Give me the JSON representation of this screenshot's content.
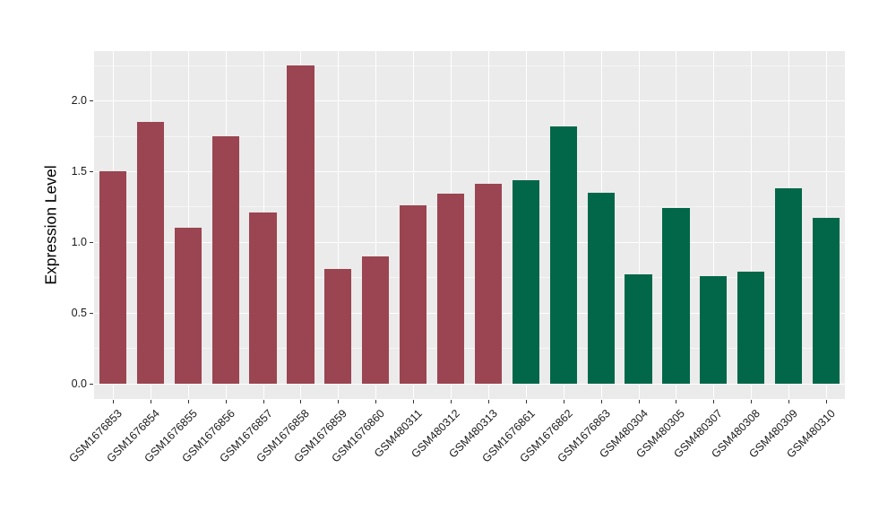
{
  "figure": {
    "background": "#FFFFFF"
  },
  "chart_data": {
    "type": "bar",
    "title": "",
    "xlabel": "",
    "ylabel": "Expression Level",
    "categories": [
      "GSM1676853",
      "GSM1676854",
      "GSM1676855",
      "GSM1676856",
      "GSM1676857",
      "GSM1676858",
      "GSM1676859",
      "GSM1676860",
      "GSM480311",
      "GSM480312",
      "GSM480313",
      "GSM1676861",
      "GSM1676862",
      "GSM1676863",
      "GSM480304",
      "GSM480305",
      "GSM480307",
      "GSM480308",
      "GSM480309",
      "GSM480310"
    ],
    "values": [
      1.5,
      1.85,
      1.1,
      1.75,
      1.21,
      2.25,
      0.81,
      0.9,
      1.26,
      1.34,
      1.41,
      1.44,
      1.82,
      1.35,
      0.77,
      1.24,
      0.76,
      0.79,
      1.38,
      1.17
    ],
    "bar_colors": [
      "#9A4551",
      "#9A4551",
      "#9A4551",
      "#9A4551",
      "#9A4551",
      "#9A4551",
      "#9A4551",
      "#9A4551",
      "#9A4551",
      "#9A4551",
      "#9A4551",
      "#026749",
      "#026749",
      "#026749",
      "#026749",
      "#026749",
      "#026749",
      "#026749",
      "#026749",
      "#026749"
    ],
    "yticks": [
      {
        "value": 0.0,
        "label": "0.0"
      },
      {
        "value": 0.5,
        "label": "0.5"
      },
      {
        "value": 1.0,
        "label": "1.0"
      },
      {
        "value": 1.5,
        "label": "1.5"
      },
      {
        "value": 2.0,
        "label": "2.0"
      }
    ],
    "y_minor_ticks": [
      0.25,
      0.75,
      1.25,
      1.75,
      2.25
    ],
    "ylim": [
      -0.11,
      2.35
    ],
    "bar_width_ratio": 0.72,
    "grid": true,
    "legend": "none",
    "panel_bg": "#EBEBEB",
    "grid_color": "#FFFFFF",
    "tick_color": "#333333",
    "axis_text_color": "#1A1A1A"
  }
}
